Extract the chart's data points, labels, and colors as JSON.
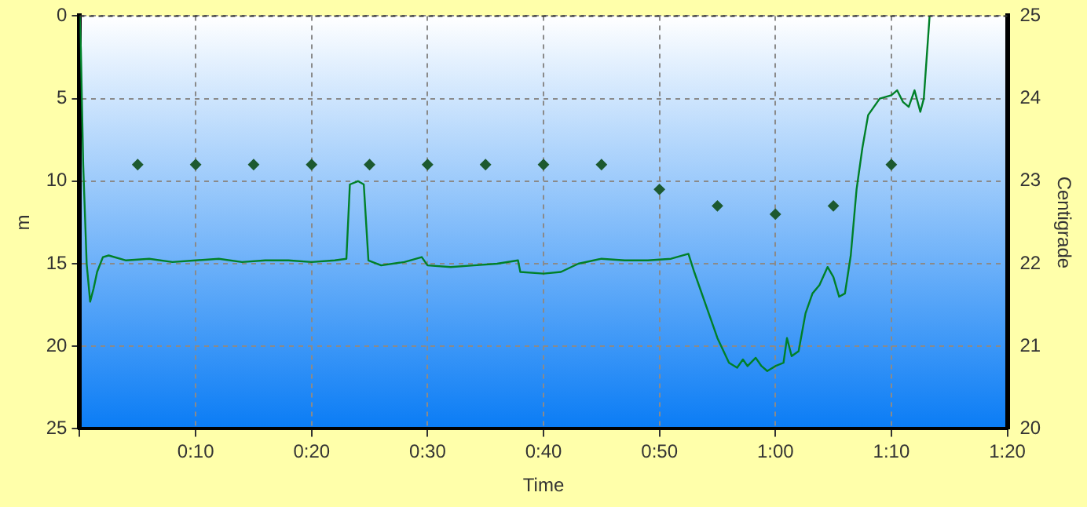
{
  "chart_data": {
    "type": "line",
    "xlabel": "Time",
    "ylabel": "m",
    "y2label": "Centigrade",
    "xlim": [
      0,
      80
    ],
    "xticks": [
      {
        "value": 0,
        "label": null
      },
      {
        "value": 10,
        "label": "0:10"
      },
      {
        "value": 20,
        "label": "0:20"
      },
      {
        "value": 30,
        "label": "0:30"
      },
      {
        "value": 40,
        "label": "0:40"
      },
      {
        "value": 50,
        "label": "0:50"
      },
      {
        "value": 60,
        "label": "1:00"
      },
      {
        "value": 70,
        "label": "1:10"
      },
      {
        "value": 80,
        "label": "1:20"
      }
    ],
    "ylim": [
      25,
      0
    ],
    "yticks": [
      0,
      5,
      10,
      15,
      20,
      25
    ],
    "y2lim": [
      20,
      25
    ],
    "y2ticks": [
      20,
      21,
      22,
      23,
      24,
      25
    ],
    "grid": true,
    "legend": false,
    "series": [
      {
        "color": "#008028",
        "marker": "none",
        "line_style": "solid",
        "x": [
          0,
          0.1,
          0.3,
          0.6,
          0.9,
          1.2,
          1.5,
          2,
          2.5,
          4,
          6,
          8,
          10,
          12,
          14,
          16,
          18,
          20,
          22,
          23,
          23.3,
          24,
          24.5,
          24.9,
          26,
          28,
          29.5,
          30,
          32,
          34,
          36,
          37.8,
          38,
          40,
          41.5,
          43,
          45,
          47,
          49,
          51,
          52.5,
          53,
          54,
          55,
          56,
          56.7,
          57.2,
          57.6,
          58.3,
          58.8,
          59.3,
          60,
          60.7,
          61,
          61.4,
          62,
          62.6,
          63.2,
          63.8,
          64.5,
          65,
          65.5,
          66,
          66.5,
          67,
          67.5,
          68,
          68.5,
          69,
          70,
          70.5,
          71,
          71.5,
          72,
          72.5,
          72.8,
          73.3
        ],
        "values": [
          0,
          2,
          9,
          15,
          17.3,
          16.5,
          15.5,
          14.6,
          14.5,
          14.8,
          14.7,
          14.9,
          14.8,
          14.7,
          14.9,
          14.8,
          14.8,
          14.9,
          14.8,
          14.7,
          10.2,
          10,
          10.2,
          14.8,
          15.1,
          14.9,
          14.6,
          15.1,
          15.2,
          15.1,
          15,
          14.8,
          15.5,
          15.6,
          15.5,
          15,
          14.7,
          14.8,
          14.8,
          14.7,
          14.4,
          15.5,
          17.5,
          19.5,
          21,
          21.3,
          20.8,
          21.2,
          20.7,
          21.2,
          21.5,
          21.2,
          21,
          19.5,
          20.6,
          20.3,
          18,
          16.8,
          16.3,
          15.2,
          15.8,
          17,
          16.8,
          14.5,
          10.5,
          8,
          6,
          5.5,
          5,
          4.8,
          4.5,
          5.2,
          5.5,
          4.5,
          5.8,
          5,
          0
        ]
      },
      {
        "type": "scatter",
        "axis": "y2",
        "color": "#1d5a30",
        "marker": "diamond",
        "x": [
          5,
          10,
          15,
          20,
          25,
          30,
          35,
          40,
          45,
          50,
          55,
          60,
          65,
          70
        ],
        "values": [
          23.2,
          23.2,
          23.2,
          23.2,
          23.2,
          23.2,
          23.2,
          23.2,
          23.2,
          22.9,
          22.7,
          22.6,
          22.7,
          23.2
        ]
      }
    ]
  }
}
